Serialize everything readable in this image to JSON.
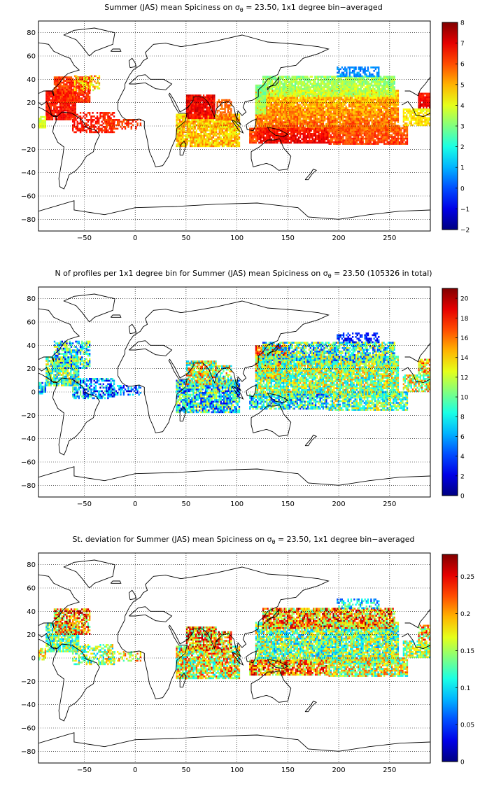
{
  "figure": {
    "panels": [
      {
        "title_prefix": "Summer (JAS) mean Spiciness on σ",
        "title_sub": "θ",
        "title_suffix": " = 23.50, 1x1 degree bin−averaged",
        "xticks": [
          "−50",
          "0",
          "50",
          "100",
          "150",
          "200",
          "250"
        ],
        "yticks": [
          "80",
          "60",
          "40",
          "20",
          "0",
          "−20",
          "−40",
          "−60",
          "−80"
        ],
        "colorbar": {
          "ticks": [
            "8",
            "7",
            "6",
            "5",
            "4",
            "3",
            "2",
            "1",
            "0",
            "−1",
            "−2"
          ],
          "min": -2,
          "max": 8
        }
      },
      {
        "title_prefix": "N of profiles per 1x1 degree bin for Summer (JAS) mean Spiciness on σ",
        "title_sub": "θ",
        "title_suffix": " = 23.50 (105326 in total)",
        "xticks": [
          "−50",
          "0",
          "50",
          "100",
          "150",
          "200",
          "250"
        ],
        "yticks": [
          "80",
          "60",
          "40",
          "20",
          "0",
          "−20",
          "−40",
          "−60",
          "−80"
        ],
        "colorbar": {
          "ticks": [
            "20",
            "18",
            "16",
            "14",
            "12",
            "10",
            "8",
            "6",
            "4",
            "2",
            "0"
          ],
          "min": 0,
          "max": 21
        }
      },
      {
        "title_prefix": "St. deviation for Summer (JAS) mean Spiciness on σ",
        "title_sub": "θ",
        "title_suffix": " = 23.50, 1x1 degree bin−averaged",
        "xticks": [
          "−50",
          "0",
          "50",
          "100",
          "150",
          "200",
          "250"
        ],
        "yticks": [
          "80",
          "60",
          "40",
          "20",
          "0",
          "−20",
          "−40",
          "−60",
          "−80"
        ],
        "colorbar": {
          "ticks": [
            "0.25",
            "0.2",
            "0.15",
            "0.1",
            "0.05",
            "0"
          ],
          "min": 0,
          "max": 0.28
        }
      }
    ],
    "map_extent": {
      "lon": [
        -95,
        290
      ],
      "lat": [
        -90,
        90
      ]
    },
    "colormap": "jet"
  }
}
